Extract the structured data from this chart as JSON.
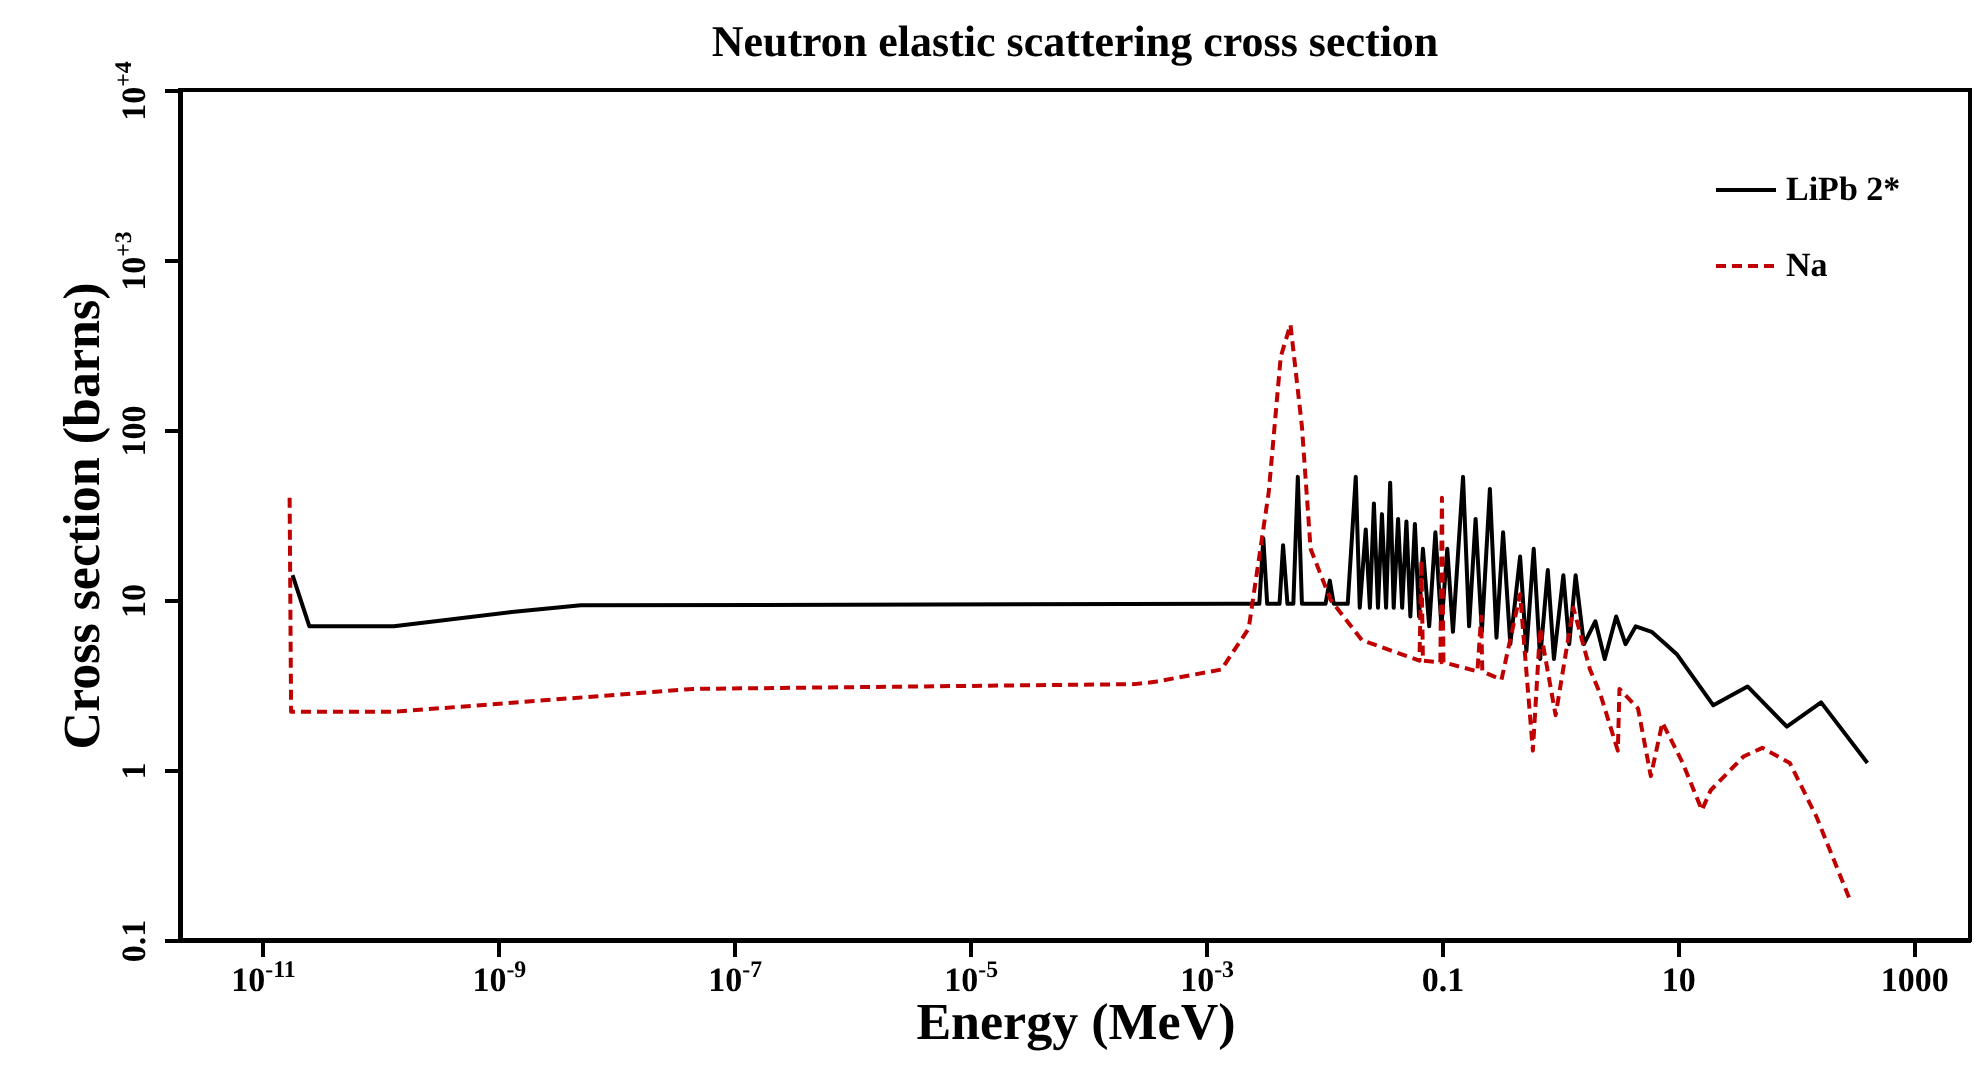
{
  "chart_data": {
    "type": "line",
    "title": "Neutron elastic scattering cross section",
    "xlabel": "Energy (MeV)",
    "ylabel": "Cross section (barns)",
    "log": "xy",
    "grid": false,
    "legend": "top right",
    "marker": "none",
    "xlim": [
      2e-12,
      3000
    ],
    "ylim": [
      0.1,
      10000
    ],
    "xticks": [
      {
        "value": 1e-11,
        "label": "10$^{-11}$"
      },
      {
        "value": 1e-09,
        "label": "10$^{-9}$"
      },
      {
        "value": 1e-07,
        "label": "10$^{-7}$"
      },
      {
        "value": 1e-05,
        "label": "10$^{-5}$"
      },
      {
        "value": 0.001,
        "label": "10$^{-3}$"
      },
      0.1,
      10,
      1000
    ],
    "yticks": [
      0.1,
      1,
      10,
      100,
      {
        "value": 1000,
        "label": "10$^{+3}$"
      },
      {
        "value": 10000,
        "label": "10$^{+4}$"
      }
    ],
    "series": [
      {
        "name": "LiPb 2*",
        "color": "#000000",
        "line_style": "solid",
        "x": [
          1.8e-11,
          2.5e-11,
          1.3e-10,
          1.3e-09,
          5e-09,
          0.0018,
          0.00283,
          0.00306,
          0.0033,
          0.0042,
          0.0045,
          0.0049,
          0.0055,
          0.006,
          0.0065,
          0.0103,
          0.0112,
          0.0121,
          0.0159,
          0.0186,
          0.0201,
          0.0226,
          0.0245,
          0.0265,
          0.0287,
          0.031,
          0.0336,
          0.0364,
          0.039,
          0.0425,
          0.046,
          0.05,
          0.054,
          0.059,
          0.064,
          0.069,
          0.078,
          0.088,
          0.099,
          0.111,
          0.124,
          0.151,
          0.17,
          0.193,
          0.218,
          0.255,
          0.29,
          0.33,
          0.38,
          0.46,
          0.52,
          0.6,
          0.68,
          0.79,
          0.89,
          1.07,
          1.2,
          1.36,
          1.6,
          2.0,
          2.4,
          3.0,
          3.6,
          4.4,
          6.0,
          7.9,
          9.8,
          20,
          39,
          84,
          164,
          405
        ],
        "values": [
          14,
          7,
          7,
          8.5,
          9.3,
          9.5,
          9.5,
          23,
          9.5,
          9.5,
          21,
          9.5,
          9.5,
          53,
          9.5,
          9.5,
          13,
          9.5,
          9.5,
          53,
          9,
          26,
          9,
          37,
          9,
          32,
          9,
          49,
          9,
          30,
          9,
          29,
          8,
          28,
          8,
          20,
          7,
          25,
          7,
          20,
          6.5,
          53,
          7,
          30,
          6.5,
          45,
          6,
          25,
          5.5,
          18,
          5,
          20,
          4.5,
          15,
          4.5,
          14,
          5.5,
          14,
          5.5,
          7.5,
          4.5,
          8,
          5.5,
          7,
          6.5,
          5.5,
          4.8,
          2.4,
          3.1,
          1.8,
          2.5,
          1.1
        ]
      },
      {
        "name": "Na",
        "color": "#c00000",
        "line_style": "dashed",
        "x": [
          1.7e-11,
          1.75e-11,
          1.3e-10,
          4.5e-08,
          0.00025,
          0.00037,
          0.00135,
          0.0023,
          0.0034,
          0.0043,
          0.0052,
          0.0065,
          0.0077,
          0.0114,
          0.021,
          0.0645,
          0.067,
          0.069,
          0.097,
          0.1,
          0.103,
          0.2,
          0.215,
          0.22,
          0.32,
          0.46,
          0.59,
          0.68,
          0.92,
          1.3,
          1.8,
          2.2,
          3.1,
          3.2,
          4.6,
          5.9,
          7.4,
          11,
          16,
          19,
          36,
          52,
          89,
          150,
          290
        ],
        "values": [
          40,
          2.2,
          2.2,
          3.0,
          3.2,
          3.3,
          3.9,
          6.8,
          43,
          270,
          417,
          105,
          20,
          10,
          5.8,
          4.4,
          17,
          4.4,
          4.3,
          40,
          4.3,
          3.8,
          8,
          3.8,
          3.4,
          10.8,
          1.3,
          6.8,
          2.1,
          9,
          3.9,
          2.8,
          1.3,
          3.0,
          2.3,
          0.92,
          1.9,
          1.1,
          0.58,
          0.76,
          1.2,
          1.35,
          1.1,
          0.53,
          0.17
        ]
      }
    ]
  }
}
